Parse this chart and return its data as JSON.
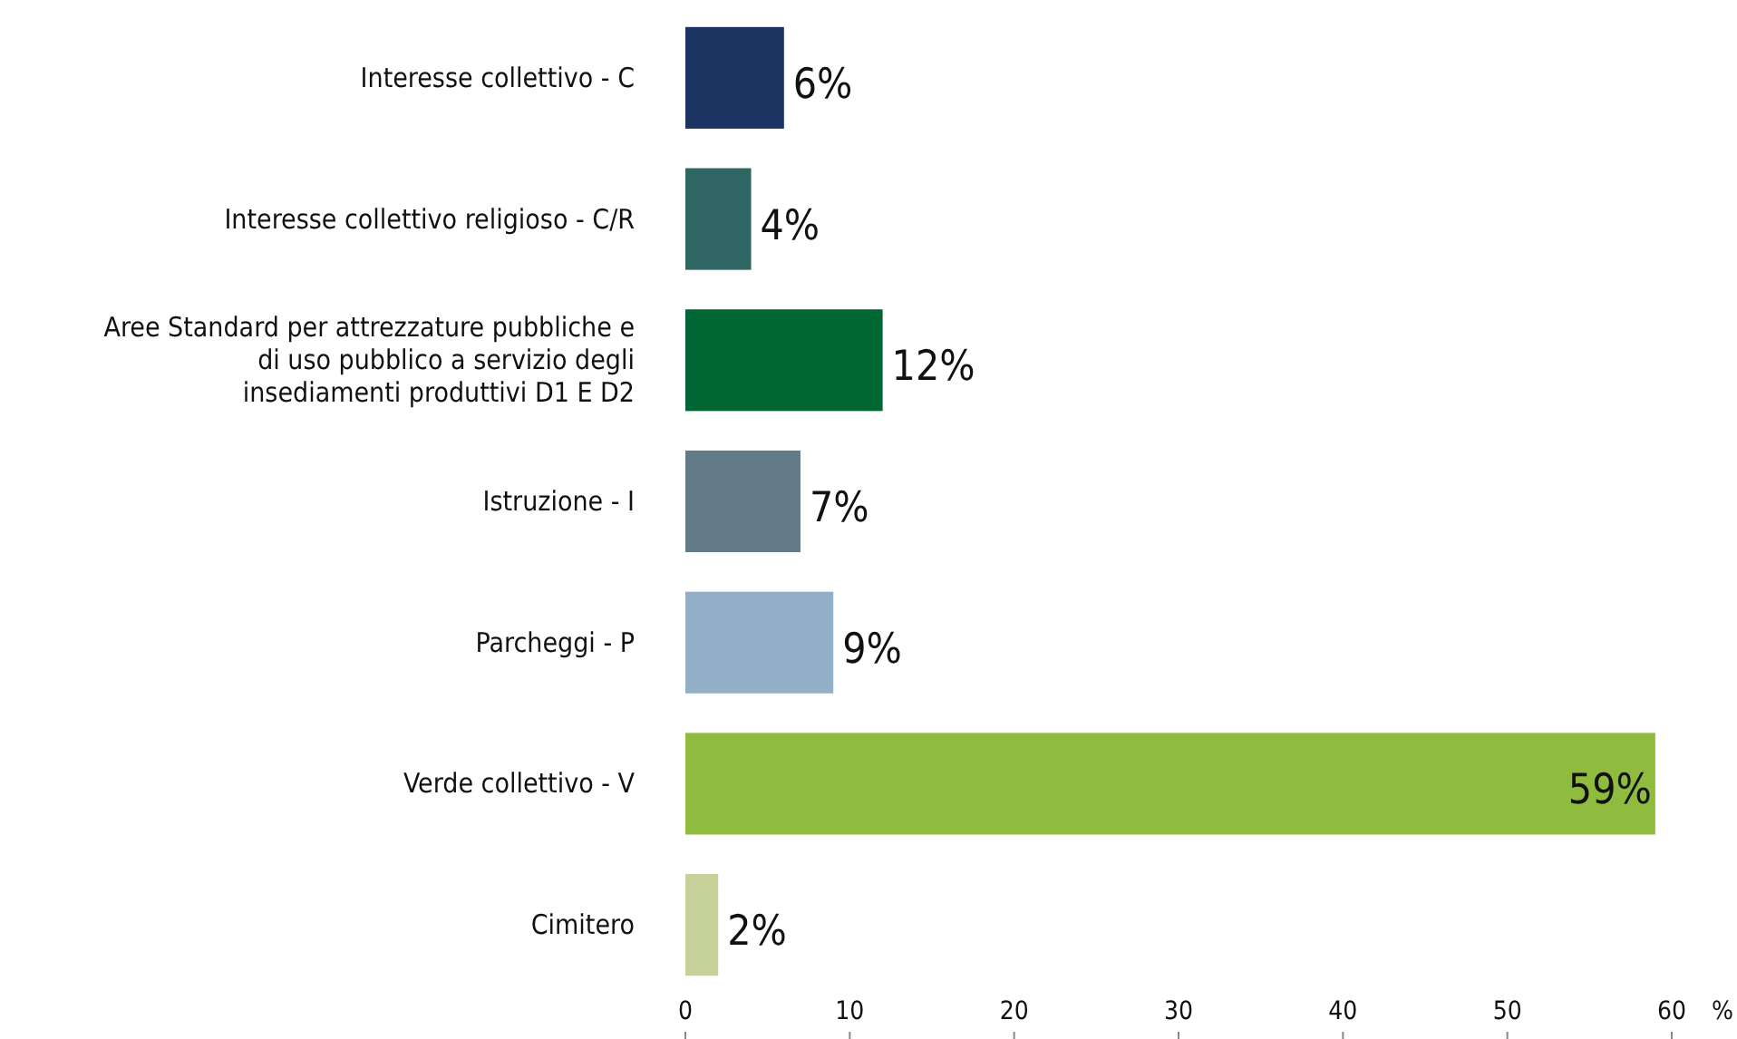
{
  "chart_data": {
    "type": "bar",
    "orientation": "horizontal",
    "categories": [
      "Interesse collettivo - C",
      "Interesse collettivo religioso - C/R",
      "Aree Standard per attrezzature pubbliche e di uso pubblico a servizio degli insediamenti produttivi D1 E D2",
      "Istruzione - I",
      "Parcheggi - P",
      "Verde collettivo - V",
      "Cimitero"
    ],
    "values": [
      6,
      4,
      12,
      7,
      9,
      59,
      2
    ],
    "colors": [
      "#1b3462",
      "#2f6663",
      "#006633",
      "#637a87",
      "#93afc7",
      "#8fbc3f",
      "#c5d199"
    ],
    "value_labels": [
      "6%",
      "4%",
      "12%",
      "7%",
      "9%",
      "59%",
      "2%"
    ],
    "xlabel": "%",
    "xlim": [
      0,
      60
    ],
    "xticks": [
      0,
      10,
      20,
      30,
      40,
      50,
      60
    ],
    "grid": false
  }
}
